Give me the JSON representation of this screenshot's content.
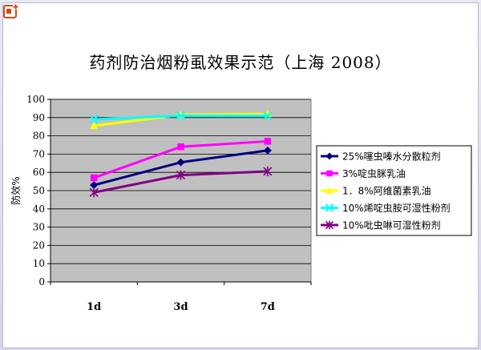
{
  "icons": {
    "corner": "slide-add-icon"
  },
  "colors": {
    "plot_bg": "#c0c0c0",
    "grid": "#000000",
    "series": [
      "#000080",
      "#ff00ff",
      "#ffff00",
      "#00ffff",
      "#800080"
    ]
  },
  "chart_data": {
    "type": "line",
    "title": "药剂防治烟粉虱效果示范（上海 2008）",
    "xlabel": "",
    "ylabel": "防效%",
    "categories": [
      "1d",
      "3d",
      "7d"
    ],
    "ylim": [
      0,
      100
    ],
    "yticks": [
      0,
      10,
      20,
      30,
      40,
      50,
      60,
      70,
      80,
      90,
      100
    ],
    "grid": true,
    "legend_position": "right",
    "series": [
      {
        "name": "25%噻虫嗪水分散粒剂",
        "values": [
          53,
          65.5,
          72
        ],
        "marker": "diamond"
      },
      {
        "name": "3%啶虫脒乳油",
        "values": [
          57,
          74,
          77
        ],
        "marker": "square"
      },
      {
        "name": "1．8%阿维菌素乳油",
        "values": [
          85.5,
          91.5,
          92
        ],
        "marker": "triangle"
      },
      {
        "name": "10%烯啶虫胺可湿性粉剂",
        "values": [
          89,
          91,
          91
        ],
        "marker": "x"
      },
      {
        "name": "10%吡虫啉可湿性粉剂",
        "values": [
          49,
          58.5,
          60.5
        ],
        "marker": "star"
      }
    ]
  }
}
